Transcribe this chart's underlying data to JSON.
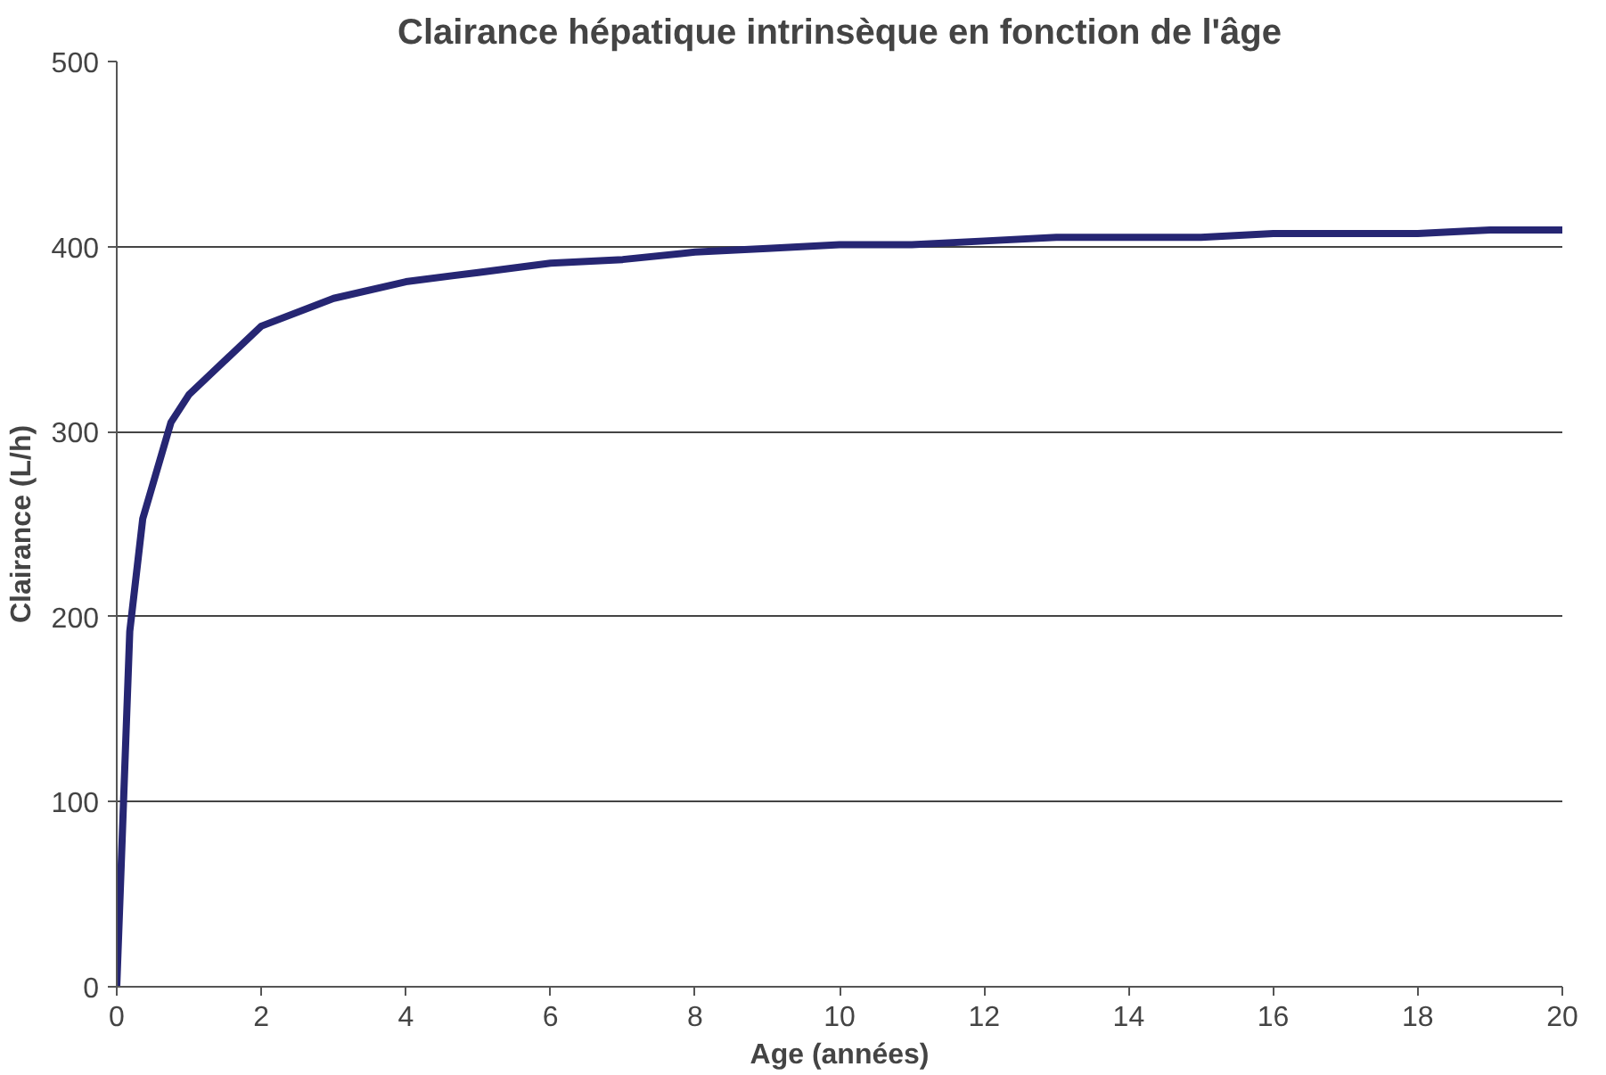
{
  "chart_data": {
    "type": "line",
    "title": "Clairance hépatique intrinsèque en fonction de l'âge",
    "xlabel": "Age (années)",
    "ylabel": "Clairance (L/h)",
    "series": [
      {
        "color": "#262673",
        "x": [
          0,
          0.18,
          0.36,
          0.75,
          1,
          2,
          3,
          4,
          5,
          6,
          7,
          8,
          9,
          10,
          11,
          12,
          13,
          14,
          15,
          16,
          17,
          18,
          19,
          20
        ],
        "values": [
          0,
          192,
          253,
          305,
          320,
          357,
          372,
          381,
          386,
          391,
          393,
          397,
          399,
          401,
          401,
          403,
          405,
          405,
          405,
          407,
          407,
          407,
          409,
          409
        ]
      }
    ],
    "xlim": [
      0,
      20
    ],
    "ylim": [
      0,
      500
    ],
    "xticks": [
      0,
      2,
      4,
      6,
      8,
      10,
      12,
      14,
      16,
      18,
      20
    ],
    "yticks": [
      0,
      100,
      200,
      300,
      400,
      500
    ],
    "grid": "y",
    "marker": "none",
    "line_style": "solid"
  }
}
